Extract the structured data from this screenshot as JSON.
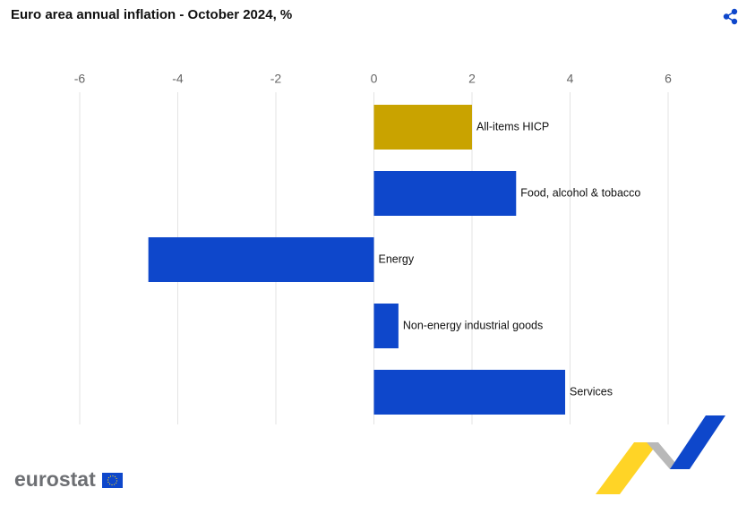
{
  "chart_data": {
    "type": "hbar",
    "title": "Euro area annual inflation - October 2024, %",
    "categories": [
      "All-items HICP",
      "Food, alcohol & tobacco",
      "Energy",
      "Non-energy industrial goods",
      "Services"
    ],
    "values": [
      2.0,
      2.9,
      -4.6,
      0.5,
      3.9
    ],
    "colors": [
      "#c9a300",
      "#0e47cb",
      "#0e47cb",
      "#0e47cb",
      "#0e47cb"
    ],
    "xlim": [
      -6,
      6
    ],
    "xticks": [
      -6,
      -4,
      -2,
      0,
      2,
      4,
      6
    ],
    "grid": true
  },
  "logo": "eurostat"
}
